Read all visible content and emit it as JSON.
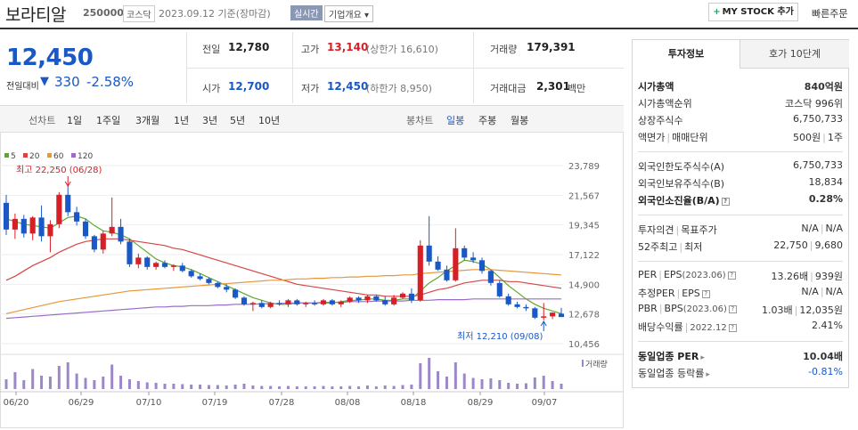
{
  "header": {
    "name": "보라티알",
    "code": "250000",
    "market": "코스닥",
    "as_of": "2023.09.12 기준(장마감)",
    "realtime": "실시간",
    "overview": "기업개요 ▾",
    "mystock": "MY STOCK 추가",
    "quick_order": "빠른주문"
  },
  "quote": {
    "price": "12,450",
    "change_label": "전일대비",
    "change": "330",
    "change_pct": "-2.58%",
    "prev_close_label": "전일",
    "prev_close": "12,780",
    "high_label": "고가",
    "high": "13,140",
    "upper_limit": "(상한가 16,610)",
    "volume_label": "거래량",
    "volume": "179,391",
    "open_label": "시가",
    "open": "12,700",
    "low_label": "저가",
    "low": "12,450",
    "lower_limit": "(하한가 8,950)",
    "amount_label": "거래대금",
    "amount": "2,301",
    "amount_unit": "백만"
  },
  "toolbar": {
    "line_chart_label": "선차트",
    "periods": [
      "1일",
      "1주일",
      "3개월",
      "1년",
      "3년",
      "5년",
      "10년"
    ],
    "candle_chart_label": "봉차트",
    "candle_periods": [
      "일봉",
      "주봉",
      "월봉"
    ],
    "selected_candle": "일봉"
  },
  "chart_data": {
    "type": "candlestick",
    "legend": [
      {
        "name": "5",
        "color": "#5aa832"
      },
      {
        "name": "20",
        "color": "#d64545"
      },
      {
        "name": "60",
        "color": "#e8963a"
      },
      {
        "name": "120",
        "color": "#9a6cc8"
      }
    ],
    "up_color": "#d61f26",
    "down_color": "#1a58c6",
    "y_ticks": [
      "23,789",
      "21,567",
      "19,345",
      "17,122",
      "14,900",
      "12,678",
      "10,456"
    ],
    "ylim": [
      10456,
      23789
    ],
    "x_ticks": [
      "06/20",
      "06/29",
      "07/10",
      "07/19",
      "07/28",
      "08/08",
      "08/18",
      "08/29",
      "09/07"
    ],
    "max_annotation": "최고 22,250 (06/28)",
    "min_annotation": "최저 12,210 (09/08)",
    "volume_label": "거래량",
    "candles": [
      {
        "o": 21000,
        "h": 21600,
        "l": 18600,
        "c": 19000
      },
      {
        "o": 19000,
        "h": 20200,
        "l": 18300,
        "c": 19800
      },
      {
        "o": 19800,
        "h": 20100,
        "l": 18400,
        "c": 18700
      },
      {
        "o": 18700,
        "h": 20000,
        "l": 18200,
        "c": 19900
      },
      {
        "o": 19900,
        "h": 20800,
        "l": 18100,
        "c": 18500
      },
      {
        "o": 18500,
        "h": 19700,
        "l": 17300,
        "c": 19400
      },
      {
        "o": 19400,
        "h": 21800,
        "l": 19100,
        "c": 21600
      },
      {
        "o": 21600,
        "h": 22250,
        "l": 20000,
        "c": 20300
      },
      {
        "o": 20300,
        "h": 20700,
        "l": 19300,
        "c": 19600
      },
      {
        "o": 19600,
        "h": 19800,
        "l": 18300,
        "c": 18500
      },
      {
        "o": 18500,
        "h": 18600,
        "l": 17300,
        "c": 17500
      },
      {
        "o": 17500,
        "h": 18900,
        "l": 17200,
        "c": 18700
      },
      {
        "o": 18700,
        "h": 21400,
        "l": 18500,
        "c": 19200
      },
      {
        "o": 19200,
        "h": 19800,
        "l": 17900,
        "c": 18100
      },
      {
        "o": 18100,
        "h": 18300,
        "l": 16200,
        "c": 16400
      },
      {
        "o": 16400,
        "h": 17200,
        "l": 16100,
        "c": 16900
      },
      {
        "o": 16900,
        "h": 17000,
        "l": 16000,
        "c": 16200
      },
      {
        "o": 16200,
        "h": 16600,
        "l": 16000,
        "c": 16500
      },
      {
        "o": 16500,
        "h": 16700,
        "l": 16100,
        "c": 16200
      },
      {
        "o": 16200,
        "h": 16400,
        "l": 15900,
        "c": 16300
      },
      {
        "o": 16300,
        "h": 16500,
        "l": 15800,
        "c": 15900
      },
      {
        "o": 15900,
        "h": 16000,
        "l": 15400,
        "c": 15500
      },
      {
        "o": 15500,
        "h": 15700,
        "l": 15200,
        "c": 15300
      },
      {
        "o": 15300,
        "h": 15400,
        "l": 14900,
        "c": 15000
      },
      {
        "o": 15000,
        "h": 15100,
        "l": 14600,
        "c": 14700
      },
      {
        "o": 14700,
        "h": 14900,
        "l": 14300,
        "c": 14500
      },
      {
        "o": 14500,
        "h": 14600,
        "l": 13800,
        "c": 13900
      },
      {
        "o": 13900,
        "h": 14000,
        "l": 13300,
        "c": 13400
      },
      {
        "o": 13400,
        "h": 13600,
        "l": 12900,
        "c": 13500
      },
      {
        "o": 13500,
        "h": 13700,
        "l": 13100,
        "c": 13200
      },
      {
        "o": 13200,
        "h": 13600,
        "l": 13100,
        "c": 13500
      },
      {
        "o": 13500,
        "h": 13700,
        "l": 13300,
        "c": 13400
      },
      {
        "o": 13400,
        "h": 13800,
        "l": 13200,
        "c": 13700
      },
      {
        "o": 13700,
        "h": 13800,
        "l": 13300,
        "c": 13400
      },
      {
        "o": 13400,
        "h": 13600,
        "l": 13200,
        "c": 13500
      },
      {
        "o": 13500,
        "h": 13700,
        "l": 13300,
        "c": 13400
      },
      {
        "o": 13400,
        "h": 13800,
        "l": 13300,
        "c": 13700
      },
      {
        "o": 13700,
        "h": 13800,
        "l": 13300,
        "c": 13400
      },
      {
        "o": 13400,
        "h": 13700,
        "l": 13200,
        "c": 13600
      },
      {
        "o": 13600,
        "h": 14000,
        "l": 13500,
        "c": 13900
      },
      {
        "o": 13900,
        "h": 14000,
        "l": 13500,
        "c": 13700
      },
      {
        "o": 13700,
        "h": 14100,
        "l": 13500,
        "c": 14000
      },
      {
        "o": 14000,
        "h": 14100,
        "l": 13600,
        "c": 13700
      },
      {
        "o": 13700,
        "h": 14000,
        "l": 13300,
        "c": 13400
      },
      {
        "o": 13400,
        "h": 14100,
        "l": 13300,
        "c": 13900
      },
      {
        "o": 13900,
        "h": 14300,
        "l": 13800,
        "c": 14200
      },
      {
        "o": 14200,
        "h": 14600,
        "l": 13500,
        "c": 13700
      },
      {
        "o": 13700,
        "h": 18200,
        "l": 13600,
        "c": 17800
      },
      {
        "o": 17800,
        "h": 20000,
        "l": 16300,
        "c": 16600
      },
      {
        "o": 16600,
        "h": 17000,
        "l": 15900,
        "c": 16000
      },
      {
        "o": 16000,
        "h": 16300,
        "l": 15100,
        "c": 15200
      },
      {
        "o": 15200,
        "h": 19100,
        "l": 15100,
        "c": 17600
      },
      {
        "o": 17600,
        "h": 17800,
        "l": 16700,
        "c": 16900
      },
      {
        "o": 16900,
        "h": 17300,
        "l": 16500,
        "c": 16700
      },
      {
        "o": 16700,
        "h": 16900,
        "l": 15700,
        "c": 15900
      },
      {
        "o": 15900,
        "h": 16000,
        "l": 14800,
        "c": 15000
      },
      {
        "o": 15000,
        "h": 15200,
        "l": 13900,
        "c": 14000
      },
      {
        "o": 14000,
        "h": 14200,
        "l": 13300,
        "c": 13400
      },
      {
        "o": 13400,
        "h": 13600,
        "l": 13100,
        "c": 13200
      },
      {
        "o": 13200,
        "h": 13400,
        "l": 12900,
        "c": 13100
      },
      {
        "o": 13100,
        "h": 13200,
        "l": 12300,
        "c": 12400
      },
      {
        "o": 12400,
        "h": 13500,
        "l": 12210,
        "c": 12500
      },
      {
        "o": 12500,
        "h": 12800,
        "l": 12300,
        "c": 12780
      },
      {
        "o": 12700,
        "h": 13140,
        "l": 12450,
        "c": 12450
      }
    ],
    "ma5": [
      19800,
      19600,
      19400,
      19300,
      19200,
      19100,
      19500,
      19900,
      20000,
      19800,
      19300,
      18900,
      18800,
      18600,
      18300,
      17800,
      17300,
      16800,
      16500,
      16300,
      16200,
      16000,
      15700,
      15400,
      15100,
      14800,
      14500,
      14200,
      13900,
      13700,
      13500,
      13400,
      13400,
      13500,
      13500,
      13500,
      13500,
      13500,
      13600,
      13700,
      13700,
      13800,
      13800,
      13700,
      13700,
      13800,
      13800,
      14400,
      15000,
      15400,
      15900,
      16300,
      16700,
      16600,
      16400,
      16000,
      15400,
      14800,
      14300,
      13800,
      13400,
      13100,
      12900,
      12700
    ],
    "ma20": [
      15200,
      15500,
      15900,
      16300,
      16600,
      16900,
      17300,
      17600,
      17900,
      18100,
      18200,
      18300,
      18300,
      18300,
      18200,
      18100,
      18000,
      17900,
      17800,
      17600,
      17500,
      17300,
      17100,
      16900,
      16700,
      16500,
      16300,
      16100,
      15900,
      15700,
      15500,
      15300,
      15100,
      14900,
      14800,
      14700,
      14600,
      14500,
      14400,
      14300,
      14200,
      14100,
      14100,
      14000,
      14000,
      14000,
      14000,
      14100,
      14300,
      14500,
      14600,
      14800,
      15000,
      15100,
      15200,
      15200,
      15200,
      15100,
      15100,
      15000,
      14900,
      14800,
      14700,
      14600
    ],
    "ma60": [
      12700,
      12850,
      13000,
      13150,
      13300,
      13450,
      13600,
      13700,
      13800,
      13900,
      14000,
      14100,
      14200,
      14300,
      14400,
      14450,
      14500,
      14550,
      14600,
      14650,
      14700,
      14750,
      14800,
      14850,
      14900,
      14950,
      15000,
      15050,
      15100,
      15150,
      15200,
      15200,
      15250,
      15300,
      15300,
      15350,
      15350,
      15400,
      15400,
      15450,
      15450,
      15500,
      15500,
      15550,
      15550,
      15600,
      15600,
      15700,
      15750,
      15800,
      15850,
      15900,
      15950,
      16000,
      16000,
      16000,
      15950,
      15900,
      15850,
      15800,
      15750,
      15700,
      15650,
      15600
    ],
    "ma120": [
      12350,
      12400,
      12450,
      12500,
      12550,
      12600,
      12650,
      12700,
      12750,
      12800,
      12850,
      12900,
      12950,
      13000,
      13050,
      13100,
      13150,
      13200,
      13200,
      13250,
      13250,
      13300,
      13300,
      13300,
      13350,
      13350,
      13400,
      13400,
      13400,
      13450,
      13450,
      13450,
      13500,
      13500,
      13500,
      13500,
      13550,
      13550,
      13550,
      13600,
      13600,
      13600,
      13650,
      13650,
      13650,
      13650,
      13700,
      13700,
      13700,
      13750,
      13750,
      13750,
      13750,
      13800,
      13800,
      13800,
      13800,
      13800,
      13800,
      13800,
      13800,
      13800,
      13800,
      13800
    ],
    "volumes": [
      22,
      38,
      20,
      45,
      30,
      28,
      52,
      60,
      35,
      25,
      20,
      28,
      55,
      30,
      22,
      18,
      15,
      14,
      12,
      12,
      11,
      10,
      10,
      9,
      9,
      8,
      10,
      12,
      8,
      7,
      7,
      6,
      7,
      6,
      6,
      6,
      7,
      6,
      6,
      7,
      6,
      8,
      6,
      8,
      7,
      9,
      10,
      58,
      70,
      40,
      28,
      60,
      35,
      25,
      22,
      24,
      20,
      14,
      12,
      13,
      26,
      30,
      18,
      12
    ]
  },
  "right_panel": {
    "tabs": [
      "투자정보",
      "호가 10단계"
    ],
    "rows1": [
      {
        "k": "시가총액",
        "v": "840억원"
      },
      {
        "k": "시가총액순위",
        "v": "코스닥 996위"
      },
      {
        "k": "상장주식수",
        "v": "6,750,733"
      },
      {
        "k1": "액면가",
        "k2": "매매단위",
        "v1": "500원",
        "v2": "1주"
      }
    ],
    "rows2": [
      {
        "k": "외국인한도주식수(A)",
        "v": "6,750,733"
      },
      {
        "k": "외국인보유주식수(B)",
        "v": "18,834"
      },
      {
        "k": "외국인소진율(B/A)",
        "v": "0.28%"
      }
    ],
    "rows3": [
      {
        "k1": "투자의견",
        "k2": "목표주가",
        "v1": "N/A",
        "v2": "N/A"
      },
      {
        "k1": "52주최고",
        "k2": "최저",
        "v1": "22,750",
        "v2": "9,680"
      }
    ],
    "rows4": [
      {
        "k1": "PER",
        "k2": "EPS",
        "k2sub": "(2023.06)",
        "v1": "13.26배",
        "v2": "939원"
      },
      {
        "k1": "추정PER",
        "k2": "EPS",
        "v1": "N/A",
        "v2": "N/A"
      },
      {
        "k1": "PBR",
        "k2": "BPS",
        "k2sub": "(2023.06)",
        "v1": "1.03배",
        "v2": "12,035원"
      },
      {
        "k1": "배당수익률",
        "k2sub": "2022.12",
        "v": "2.41%"
      }
    ],
    "rows5": [
      {
        "k": "동일업종 PER",
        "v": "10.04배"
      },
      {
        "k": "동일업종 등락률",
        "v": "-0.81%"
      }
    ]
  }
}
